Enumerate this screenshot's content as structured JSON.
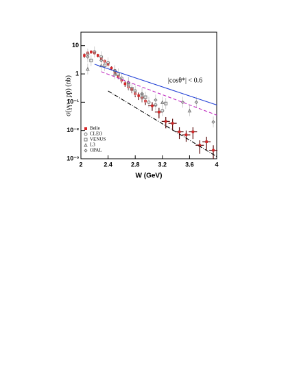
{
  "chart_data": {
    "type": "scatter",
    "xlabel": "W (GeV)",
    "ylabel": "σ(γγ→pp̄) (nb)",
    "annotation": "|cosθ*| < 0.6",
    "log_y": true,
    "xlim": [
      2,
      4
    ],
    "xticks": [
      2,
      2.4,
      2.8,
      3.2,
      3.6,
      4
    ],
    "ylim": [
      0.001,
      30
    ],
    "yticks": [
      {
        "value": 0.001,
        "label": "10⁻³"
      },
      {
        "value": 0.01,
        "label": "10⁻²"
      },
      {
        "value": 0.1,
        "label": "10⁻¹"
      },
      1,
      10
    ],
    "legend": "lower left",
    "series": [
      {
        "name": "Belle",
        "color": "#d62728",
        "marker": "square",
        "x": [
          2.05,
          2.1,
          2.15,
          2.2,
          2.25,
          2.3,
          2.35,
          2.4,
          2.45,
          2.5,
          2.55,
          2.6,
          2.65,
          2.7,
          2.75,
          2.8,
          2.85,
          2.9,
          2.95,
          3.05,
          3.15,
          3.25,
          3.35,
          3.45,
          3.55,
          3.65,
          3.75,
          3.85,
          3.95
        ],
        "values": [
          4.5,
          5.5,
          6,
          5.5,
          4.5,
          3.5,
          2.8,
          2.2,
          1.6,
          1.1,
          0.8,
          0.6,
          0.45,
          0.35,
          0.28,
          0.2,
          0.17,
          0.14,
          0.11,
          0.075,
          0.045,
          0.021,
          0.018,
          0.009,
          0.007,
          0.009,
          0.003,
          0.004,
          0.002
        ],
        "errors": [
          0.8,
          0.8,
          0.8,
          0.7,
          0.6,
          0.5,
          0.4,
          0.3,
          0.25,
          0.2,
          0.15,
          0.12,
          0.1,
          0.08,
          0.07,
          0.05,
          0.05,
          0.04,
          0.03,
          0.025,
          0.018,
          0.009,
          0.008,
          0.004,
          0.003,
          0.004,
          0.0015,
          0.002,
          0.001
        ]
      },
      {
        "name": "CLEO",
        "color": "#777777",
        "marker": "circle",
        "x": [
          2.1,
          2.2,
          2.3,
          2.4,
          2.5,
          2.6,
          2.7,
          2.8,
          2.9,
          3.0,
          3.1,
          3.2
        ],
        "values": [
          5,
          6,
          4,
          2.5,
          1.3,
          0.7,
          0.4,
          0.25,
          0.15,
          0.1,
          0.08,
          0.05
        ]
      },
      {
        "name": "VENUS",
        "color": "#777777",
        "marker": "square-open",
        "x": [
          2.15,
          2.35,
          2.55,
          2.75,
          2.95,
          3.25
        ],
        "values": [
          3,
          2,
          1,
          0.3,
          0.15,
          0.09
        ]
      },
      {
        "name": "L3",
        "color": "#777777",
        "marker": "triangle",
        "x": [
          2.1,
          2.3,
          2.5,
          2.7,
          2.9,
          3.2,
          3.6
        ],
        "values": [
          1.5,
          2,
          1,
          0.5,
          0.2,
          0.1,
          0.05
        ]
      },
      {
        "name": "OPAL",
        "color": "#777777",
        "marker": "diamond",
        "x": [
          2.1,
          2.3,
          2.5,
          2.7,
          2.9,
          3.1,
          3.5,
          3.7,
          3.95
        ],
        "values": [
          4,
          3,
          1.3,
          0.5,
          0.2,
          0.12,
          0.1,
          0.1,
          0.02
        ]
      },
      {
        "color": "#1f3fd6",
        "style": "solid",
        "x": [
          2.2,
          4
        ],
        "values": [
          2.2,
          0.08
        ]
      },
      {
        "color": "#c02cc0",
        "style": "dashed",
        "x": [
          2.3,
          4
        ],
        "values": [
          1.2,
          0.035
        ]
      },
      {
        "color": "#000000",
        "style": "dashdot",
        "x": [
          2.4,
          4
        ],
        "values": [
          0.25,
          0.0012
        ]
      }
    ]
  }
}
